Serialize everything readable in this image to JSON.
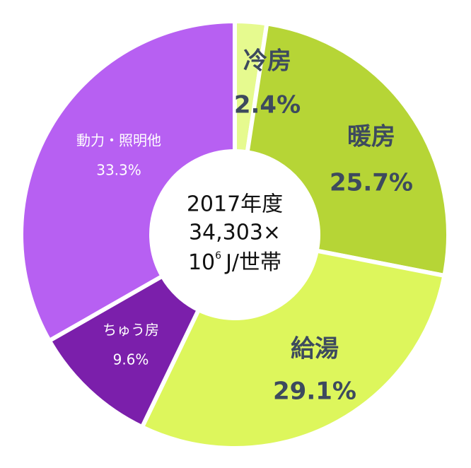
{
  "chart_data": {
    "type": "donut",
    "categories": [
      "冷房",
      "暖房",
      "給湯",
      "ちゅう房",
      "動力・照明他"
    ],
    "values": [
      2.4,
      25.7,
      29.1,
      9.6,
      33.3
    ],
    "value_labels": [
      "2.4%",
      "25.7%",
      "29.1%",
      "9.6%",
      "33.3%"
    ],
    "colors": [
      "#e6fa8f",
      "#b6d536",
      "#ddf65c",
      "#7b1fab",
      "#b760f2"
    ],
    "center_lines": [
      "2017年度",
      "34,303×",
      "10",
      "6",
      "J/世帯"
    ]
  }
}
